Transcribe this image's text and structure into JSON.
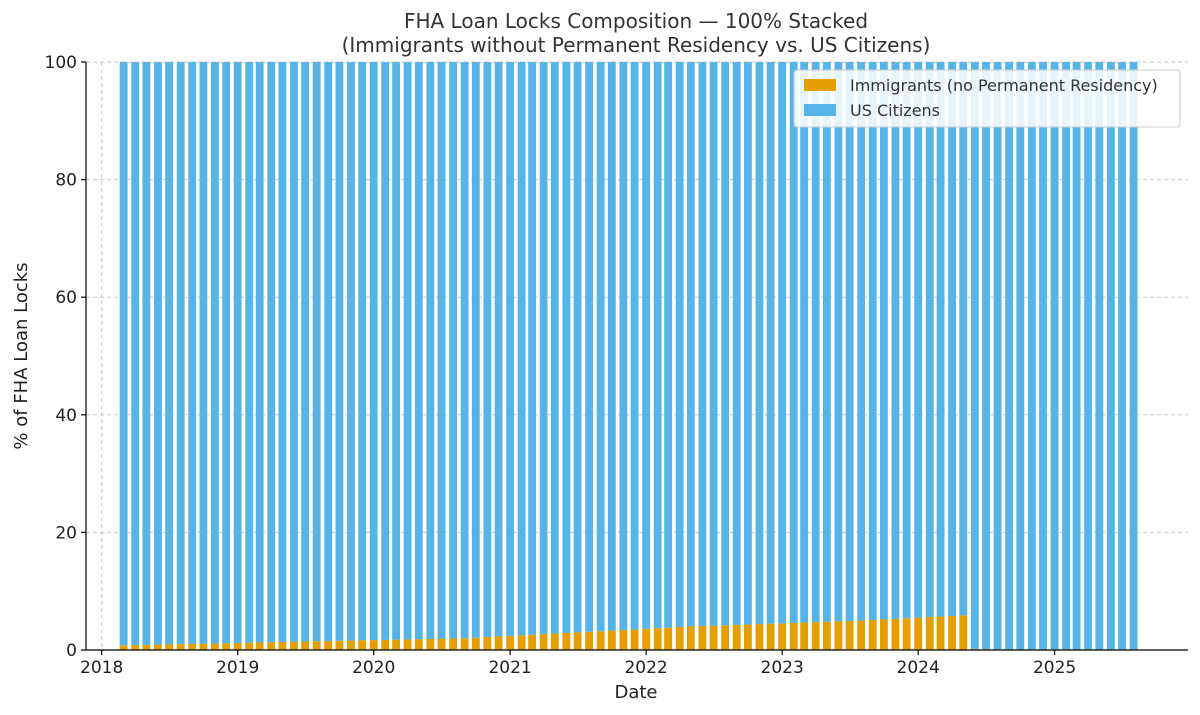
{
  "chart_data": {
    "type": "bar",
    "stacked": true,
    "title": "FHA Loan Locks Composition — 100% Stacked",
    "subtitle": "(Immigrants without Permanent Residency vs. US Citizens)",
    "xlabel": "Date",
    "ylabel": "% of FHA Loan Locks",
    "x_start": "2018-03",
    "x_end": "2025-08",
    "frequency": "monthly",
    "xlim": [
      "2017-11-20",
      "2025-12-25"
    ],
    "ylim": [
      0,
      100
    ],
    "x_ticks": [
      "2018",
      "2019",
      "2020",
      "2021",
      "2022",
      "2023",
      "2024",
      "2025"
    ],
    "y_ticks": [
      "0",
      "20",
      "40",
      "60",
      "80",
      "100"
    ],
    "grid": true,
    "legend_position": "top-right",
    "series": [
      {
        "name": "Immigrants (no Permanent Residency)",
        "color": "#E69F00",
        "values": [
          0.8,
          0.84,
          0.88,
          0.92,
          0.96,
          1.0,
          1.04,
          1.08,
          1.12,
          1.16,
          1.2,
          1.24,
          1.28,
          1.32,
          1.36,
          1.4,
          1.44,
          1.48,
          1.52,
          1.56,
          1.6,
          1.64,
          1.68,
          1.72,
          1.76,
          1.8,
          1.84,
          1.88,
          1.92,
          1.96,
          2.0,
          2.1,
          2.2,
          2.3,
          2.4,
          2.5,
          2.6,
          2.7,
          2.8,
          2.9,
          3.0,
          3.1,
          3.2,
          3.3,
          3.4,
          3.5,
          3.6,
          3.7,
          3.8,
          3.9,
          4.0,
          4.07,
          4.13,
          4.2,
          4.27,
          4.33,
          4.4,
          4.47,
          4.53,
          4.6,
          4.67,
          4.73,
          4.8,
          4.87,
          4.93,
          5.0,
          5.1,
          5.2,
          5.3,
          5.4,
          5.5,
          5.6,
          5.7,
          5.8,
          5.9,
          0.2,
          0.15,
          0.1,
          0.1,
          0.1,
          0.1,
          0.1,
          0.1,
          0.1,
          0.1,
          0.1,
          0.1,
          0.1,
          0.1,
          0.1
        ]
      },
      {
        "name": "US Citizens",
        "color": "#56B4E9",
        "values_rule": "100 minus Immigrants share"
      }
    ]
  }
}
